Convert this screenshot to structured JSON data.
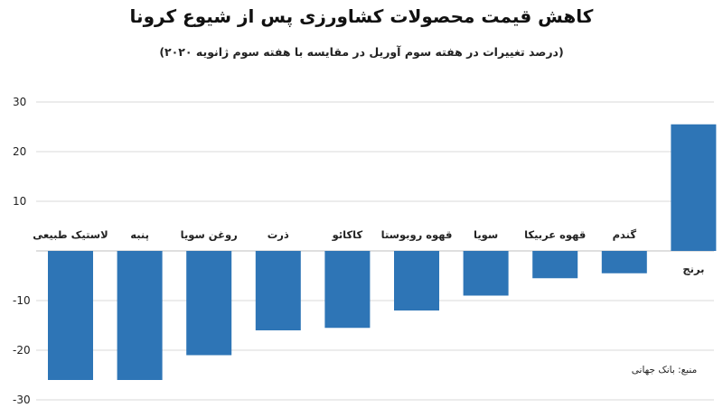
{
  "chart_data": {
    "type": "bar",
    "title": "کاهش قیمت محصولات کشاورزی پس از شیوع کرونا",
    "subtitle": "(درصد تغییرات در هفته سوم آوریل در مقایسه با هفته سوم ژانویه ۲۰۲۰)",
    "source": "منبع: بانک جهانی",
    "categories": [
      "لاستیک طبیعی",
      "پنبه",
      "روغن سویا",
      "ذرت",
      "کاکائو",
      "قهوه روبوستا",
      "سویا",
      "قهوه عربیکا",
      "گندم",
      "برنج"
    ],
    "values": [
      -26,
      -26,
      -21,
      -16,
      -15.5,
      -12,
      -9,
      -5.5,
      -4.5,
      25.5
    ],
    "yticks": [
      "30",
      "20",
      "10",
      "-10",
      "-20",
      "-30"
    ],
    "ylim": [
      -30,
      30
    ],
    "bar_color": "#2e75b6",
    "grid": true
  }
}
